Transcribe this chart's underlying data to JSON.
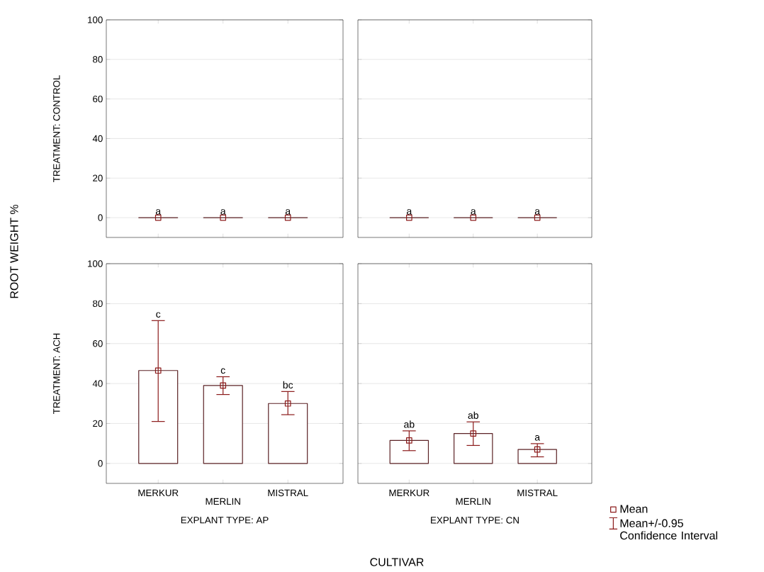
{
  "chart_data": [
    {
      "type": "bar",
      "categories": [
        "MERKUR",
        "MERLIN",
        "MISTRAL"
      ],
      "ylim": [
        -10,
        100
      ],
      "yticks": [
        0,
        20,
        40,
        60,
        80,
        100
      ],
      "grid": "y",
      "tick_labels": "y",
      "ylabel": "TREATMENT: CONTROL",
      "series": [
        {
          "type": "bar",
          "color": "#5c2326",
          "values": [
            0,
            0,
            0
          ]
        },
        {
          "type": "scatter",
          "marker": "square",
          "color": "#8b1a1a",
          "values": [
            0,
            0,
            0
          ]
        }
      ],
      "annotations": [
        "ROOT WEIGHT %",
        {
          "text": "a",
          "x": "MERKUR",
          "y": 0
        },
        {
          "text": "a",
          "x": "MERLIN",
          "y": 0
        },
        {
          "text": "a",
          "x": "MISTRAL",
          "y": 0
        }
      ]
    },
    {
      "type": "bar",
      "categories": [
        "MERKUR",
        "MERLIN",
        "MISTRAL"
      ],
      "ylim": [
        -10,
        100
      ],
      "yticks": [
        0,
        20,
        40,
        60,
        80,
        100
      ],
      "grid": "y",
      "tick_labels": false,
      "series": [
        {
          "type": "bar",
          "color": "#5c2326",
          "values": [
            0,
            0,
            0
          ]
        },
        {
          "type": "scatter",
          "marker": "square",
          "color": "#8b1a1a",
          "values": [
            0,
            0,
            0
          ]
        }
      ],
      "annotations": [
        {
          "text": "a",
          "x": "MERKUR",
          "y": 0
        },
        {
          "text": "a",
          "x": "MERLIN",
          "y": 0
        },
        {
          "text": "a",
          "x": "MISTRAL",
          "y": 0
        }
      ]
    },
    {
      "type": "bar",
      "categories": [
        "MERKUR",
        "MERLIN",
        "MISTRAL"
      ],
      "ylim": [
        -10,
        100
      ],
      "yticks": [
        0,
        20,
        40,
        60,
        80,
        100
      ],
      "grid": "y",
      "ylabel": "TREATMENT: ACH",
      "xlabel": "EXPLANT TYPE: AP",
      "series": [
        {
          "type": "bar",
          "color": "#5c2326",
          "values": [
            46.5,
            39,
            30
          ]
        },
        {
          "type": "scatter",
          "marker": "square",
          "color": "#8b1a1a",
          "values": [
            46.5,
            39,
            30
          ],
          "errors": [
            [
              21,
              71.5
            ],
            [
              34.5,
              43.4
            ],
            [
              24.4,
              36
            ]
          ]
        }
      ],
      "annotations": [
        {
          "text": "c",
          "x": "MERKUR",
          "y": 71.5
        },
        {
          "text": "c",
          "x": "MERLIN",
          "y": 43.4
        },
        {
          "text": "bc",
          "x": "MISTRAL",
          "y": 36
        }
      ]
    },
    {
      "type": "bar",
      "categories": [
        "MERKUR",
        "MERLIN",
        "MISTRAL"
      ],
      "ylim": [
        -10,
        100
      ],
      "yticks": [
        0,
        20,
        40,
        60,
        80,
        100
      ],
      "grid": "y",
      "tick_labels": "x",
      "xlabel": "EXPLANT TYPE: CN",
      "legend": "right",
      "series": [
        {
          "type": "bar",
          "color": "#5c2326",
          "values": [
            11.5,
            15,
            7
          ]
        },
        {
          "type": "scatter",
          "name": "Mean",
          "marker": "square",
          "color": "#8b1a1a",
          "values": [
            11.5,
            15,
            7
          ],
          "errors": [
            [
              6.4,
              16.3
            ],
            [
              9,
              20.8
            ],
            [
              3.3,
              9.9
            ]
          ]
        }
      ],
      "annotations": [
        "CULTIVAR",
        "Mean+/-0.95 Confidence Interval",
        {
          "text": "ab",
          "x": "MERKUR",
          "y": 16.3
        },
        {
          "text": "ab",
          "x": "MERLIN",
          "y": 20.8
        },
        {
          "text": "a",
          "x": "MISTRAL",
          "y": 9.9
        }
      ]
    }
  ]
}
